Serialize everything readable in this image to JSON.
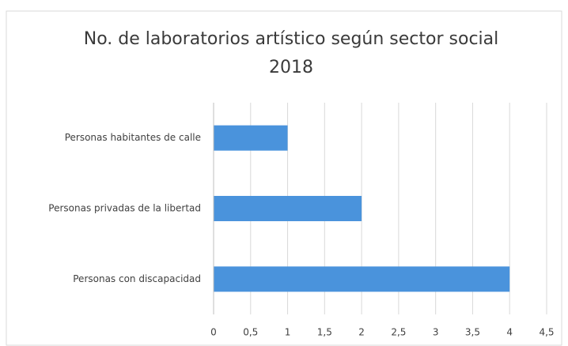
{
  "chart_data": {
    "type": "hbar",
    "title": [
      "No. de laboratorios artístico según sector social",
      "2018"
    ],
    "categories": [
      "Personas habitantes de calle",
      "Personas privadas de la libertad",
      "Personas con discapacidad"
    ],
    "values": [
      1,
      2,
      4
    ],
    "color": "#4a93dc",
    "xlim": [
      0,
      4.5
    ],
    "xticks": [
      0,
      {
        "value": 0.5,
        "label": "0,5"
      },
      1,
      {
        "value": 1.5,
        "label": "1,5"
      },
      2,
      {
        "value": 2.5,
        "label": "2,5"
      },
      3,
      {
        "value": 3.5,
        "label": "3,5"
      },
      4,
      {
        "value": 4.5,
        "label": "4,5"
      }
    ],
    "grid": true
  }
}
